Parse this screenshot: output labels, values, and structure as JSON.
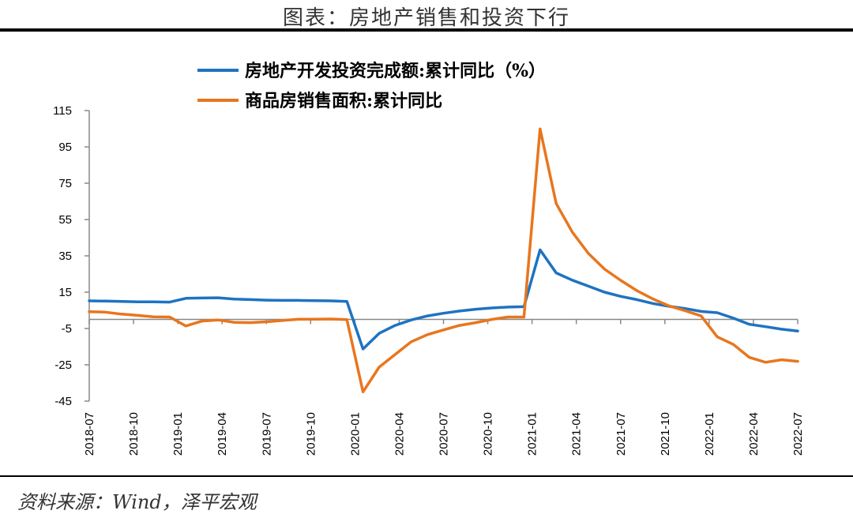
{
  "header": {
    "title": "图表：房地产销售和投资下行"
  },
  "footer": {
    "source": "资料来源：Wind，泽平宏观"
  },
  "chart_data": {
    "type": "line",
    "title": "",
    "xlabel": "",
    "ylabel": "",
    "ylim": [
      -45,
      115
    ],
    "yticks": [
      115,
      95,
      75,
      55,
      35,
      15,
      -5,
      -25,
      -45
    ],
    "xtick_labels": [
      "2018-07",
      "2018-10",
      "2019-01",
      "2019-04",
      "2019-07",
      "2019-10",
      "2020-01",
      "2020-04",
      "2020-07",
      "2020-10",
      "2021-01",
      "2021-04",
      "2021-07",
      "2021-10",
      "2022-01",
      "2022-04",
      "2022-07"
    ],
    "grid": false,
    "legend_position": "top",
    "x": [
      "2018-07",
      "2018-08",
      "2018-09",
      "2018-10",
      "2018-11",
      "2018-12",
      "2019-02",
      "2019-03",
      "2019-04",
      "2019-05",
      "2019-06",
      "2019-07",
      "2019-08",
      "2019-09",
      "2019-10",
      "2019-11",
      "2019-12",
      "2020-02",
      "2020-03",
      "2020-04",
      "2020-05",
      "2020-06",
      "2020-07",
      "2020-08",
      "2020-09",
      "2020-10",
      "2020-11",
      "2020-12",
      "2021-02",
      "2021-03",
      "2021-04",
      "2021-05",
      "2021-06",
      "2021-07",
      "2021-08",
      "2021-09",
      "2021-10",
      "2021-11",
      "2021-12",
      "2022-02",
      "2022-03",
      "2022-04",
      "2022-05",
      "2022-06",
      "2022-07"
    ],
    "series": [
      {
        "name": "房地产开发投资完成额:累计同比（%）",
        "color": "#1f73c0",
        "values": [
          10.2,
          10.1,
          9.9,
          9.7,
          9.7,
          9.5,
          11.6,
          11.8,
          11.9,
          11.2,
          10.9,
          10.6,
          10.5,
          10.5,
          10.3,
          10.2,
          9.9,
          -16.3,
          -7.7,
          -3.3,
          -0.3,
          1.9,
          3.4,
          4.6,
          5.6,
          6.3,
          6.8,
          7.0,
          38.3,
          25.6,
          21.6,
          18.3,
          15.0,
          12.7,
          10.9,
          8.8,
          7.2,
          6.0,
          4.4,
          3.7,
          0.7,
          -2.7,
          -4.0,
          -5.4,
          -6.4
        ]
      },
      {
        "name": "商品房销售面积:累计同比",
        "color": "#e8761e",
        "values": [
          4.2,
          4.0,
          2.9,
          2.2,
          1.4,
          1.3,
          -3.6,
          -0.9,
          -0.3,
          -1.6,
          -1.8,
          -1.3,
          -0.6,
          0.1,
          0.1,
          0.2,
          -0.1,
          -39.9,
          -26.3,
          -19.3,
          -12.3,
          -8.4,
          -5.8,
          -3.3,
          -1.8,
          0.0,
          1.3,
          1.3,
          104.9,
          63.8,
          48.1,
          36.3,
          27.7,
          21.5,
          15.9,
          11.3,
          7.5,
          4.8,
          1.9,
          -9.6,
          -13.8,
          -20.9,
          -23.6,
          -22.2,
          -23.1
        ]
      }
    ]
  }
}
